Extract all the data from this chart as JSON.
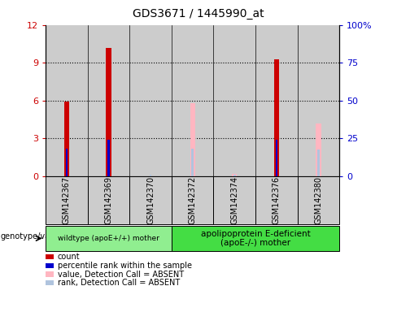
{
  "title": "GDS3671 / 1445990_at",
  "samples": [
    "GSM142367",
    "GSM142369",
    "GSM142370",
    "GSM142372",
    "GSM142374",
    "GSM142376",
    "GSM142380"
  ],
  "count_values": [
    5.9,
    10.2,
    0.0,
    0.0,
    0.0,
    9.3,
    0.0
  ],
  "percentile_values": [
    2.2,
    2.9,
    0.0,
    0.0,
    0.0,
    2.9,
    0.0
  ],
  "absent_value_values": [
    0.0,
    0.0,
    0.0,
    5.8,
    0.2,
    0.0,
    4.2
  ],
  "absent_rank_values": [
    0.0,
    0.0,
    0.15,
    2.2,
    0.15,
    0.0,
    2.1
  ],
  "ylim_left": [
    0,
    12
  ],
  "ylim_right": [
    0,
    100
  ],
  "yticks_left": [
    0,
    3,
    6,
    9,
    12
  ],
  "ytick_labels_left": [
    "0",
    "3",
    "6",
    "9",
    "12"
  ],
  "yticks_right": [
    0,
    25,
    50,
    75,
    100
  ],
  "ytick_labels_right": [
    "0",
    "25",
    "50",
    "75",
    "100%"
  ],
  "group1_n": 3,
  "group2_n": 4,
  "group1_label": "wildtype (apoE+/+) mother",
  "group2_label": "apolipoprotein E-deficient\n(apoE-/-) mother",
  "group_label_prefix": "genotype/variation",
  "group1_color": "#90EE90",
  "group2_color": "#44DD44",
  "col_bg_color": "#CCCCCC",
  "plot_bg_color": "#FFFFFF",
  "count_color": "#CC0000",
  "percentile_color": "#0000CC",
  "absent_value_color": "#FFB6C1",
  "absent_rank_color": "#B0C4DE",
  "left_tick_color": "#CC0000",
  "right_tick_color": "#0000CC",
  "bar_width": 0.12,
  "thin_bar_width": 0.05
}
